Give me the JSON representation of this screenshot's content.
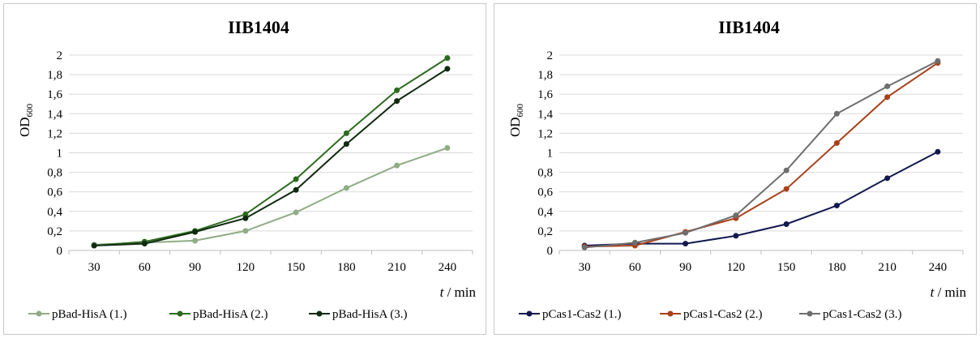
{
  "chart_data": [
    {
      "type": "line",
      "title": "IIB1404",
      "ylabel_main": "OD",
      "ylabel_sub": "600",
      "xlabel_italic": "t",
      "xlabel_rest": " / min",
      "x": [
        30,
        60,
        90,
        120,
        150,
        180,
        210,
        240
      ],
      "x_tick_labels": [
        "30",
        "60",
        "90",
        "120",
        "150",
        "180",
        "210",
        "240"
      ],
      "ylim": [
        0,
        2
      ],
      "y_tick_labels": [
        "0",
        "0,2",
        "0,4",
        "0,6",
        "0,8",
        "1",
        "1,2",
        "1,4",
        "1,6",
        "1,8",
        "2"
      ],
      "grid": "horizontal",
      "legend_position": "bottom",
      "series": [
        {
          "name": "pBad-HisA (1.)",
          "color": "#8fac84",
          "values": [
            0.06,
            0.08,
            0.1,
            0.2,
            0.39,
            0.64,
            0.87,
            1.05
          ]
        },
        {
          "name": "pBad-HisA (2.)",
          "color": "#2d6a1f",
          "values": [
            0.05,
            0.09,
            0.2,
            0.37,
            0.73,
            1.2,
            1.64,
            1.97
          ]
        },
        {
          "name": "pBad-HisA (3.)",
          "color": "#0f2a10",
          "values": [
            0.05,
            0.07,
            0.19,
            0.33,
            0.62,
            1.09,
            1.53,
            1.86
          ]
        }
      ]
    },
    {
      "type": "line",
      "title": "IIB1404",
      "ylabel_main": "OD",
      "ylabel_sub": "600",
      "xlabel_italic": "t",
      "xlabel_rest": " / min",
      "x": [
        30,
        60,
        90,
        120,
        150,
        180,
        210,
        240
      ],
      "x_tick_labels": [
        "30",
        "60",
        "90",
        "120",
        "150",
        "180",
        "210",
        "240"
      ],
      "ylim": [
        0,
        2
      ],
      "y_tick_labels": [
        "0",
        "0,2",
        "0,4",
        "0,6",
        "0,8",
        "1",
        "1,2",
        "1,4",
        "1,6",
        "1,8",
        "2"
      ],
      "grid": "horizontal",
      "legend_position": "bottom",
      "series": [
        {
          "name": "pCas1-Cas2 (1.)",
          "color": "#13194f",
          "values": [
            0.05,
            0.07,
            0.07,
            0.15,
            0.27,
            0.46,
            0.74,
            1.01
          ]
        },
        {
          "name": "pCas1-Cas2 (2.)",
          "color": "#a8401a",
          "values": [
            0.04,
            0.05,
            0.19,
            0.33,
            0.63,
            1.1,
            1.57,
            1.92
          ]
        },
        {
          "name": "pCas1-Cas2 (3.)",
          "color": "#6e6e6e",
          "values": [
            0.03,
            0.08,
            0.18,
            0.36,
            0.82,
            1.4,
            1.68,
            1.94
          ]
        }
      ]
    }
  ]
}
